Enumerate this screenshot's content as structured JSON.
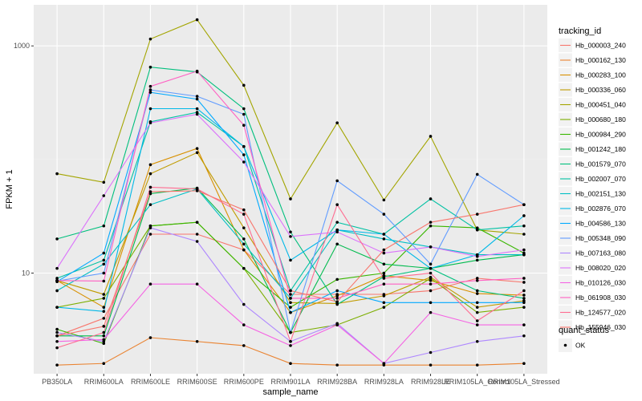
{
  "chart_data": {
    "type": "line",
    "xlabel": "sample_name",
    "ylabel": "FPKM + 1",
    "y_scale": "log10",
    "ylim": [
      1.3,
      2300
    ],
    "y_ticks": [
      10,
      1000
    ],
    "y_tick_labels": [
      "10",
      "1000"
    ],
    "grid": true,
    "legend_position": "right",
    "legend_title": "tracking_id",
    "shape_legend_title": "quant_status",
    "shape_legend_label": "OK",
    "categories": [
      "PB350LA",
      "RRIM600LA",
      "RRIM600LE",
      "RRIM600SE",
      "RRIM600PE",
      "RRIM901LA",
      "RRIM928BA",
      "RRIM928LA",
      "RRIM928LE",
      "RRIM105LA_Control",
      "RRIM105LA_Stressed"
    ],
    "series": [
      {
        "name": "Hb_000003_240",
        "color": "#F8766D",
        "values": [
          2.8,
          4.0,
          22,
          22,
          16,
          6.5,
          6.5,
          6.5,
          7.0,
          9.0,
          8.3
        ]
      },
      {
        "name": "Hb_000162_130",
        "color": "#EA8331",
        "values": [
          1.55,
          1.6,
          2.7,
          2.5,
          2.3,
          1.6,
          1.55,
          1.55,
          1.55,
          1.55,
          1.6
        ]
      },
      {
        "name": "Hb_000283_100",
        "color": "#D89000",
        "values": [
          8.6,
          5.0,
          90,
          125,
          16,
          4.5,
          6.3,
          9.5,
          8.6,
          6.6,
          6.4
        ]
      },
      {
        "name": "Hb_000336_060",
        "color": "#C09B00",
        "values": [
          8.6,
          6.5,
          75,
          115,
          25,
          5.5,
          5.4,
          6.3,
          9.2,
          5.0,
          5.7
        ]
      },
      {
        "name": "Hb_000451_040",
        "color": "#A3A500",
        "values": [
          75,
          63,
          1150,
          1700,
          450,
          45,
          210,
          44,
          160,
          24,
          22
        ]
      },
      {
        "name": "Hb_000680_180",
        "color": "#7CAE00",
        "values": [
          5.0,
          6.0,
          26,
          28,
          11,
          3.0,
          3.5,
          5.0,
          9.0,
          4.5,
          5.0
        ]
      },
      {
        "name": "Hb_000984_290",
        "color": "#39B600",
        "values": [
          3.2,
          2.4,
          26,
          28,
          11,
          5.0,
          8.8,
          10,
          26,
          25,
          15
        ]
      },
      {
        "name": "Hb_001242_180",
        "color": "#00BB4E",
        "values": [
          2.8,
          2.8,
          50,
          56,
          20,
          3.0,
          18,
          12,
          11,
          13,
          14.5
        ]
      },
      {
        "name": "Hb_001579_070",
        "color": "#00BF7D",
        "values": [
          20,
          26,
          650,
          590,
          280,
          23,
          5.3,
          9.3,
          11,
          7.0,
          6.0
        ]
      },
      {
        "name": "Hb_002007_070",
        "color": "#00C1A3",
        "values": [
          9.0,
          13,
          215,
          260,
          130,
          7.0,
          28,
          22,
          45,
          24,
          26
        ]
      },
      {
        "name": "Hb_002151_130",
        "color": "#00BFC4",
        "values": [
          7.0,
          12,
          40,
          55,
          18,
          6.0,
          24,
          20,
          17,
          14.5,
          14.5
        ]
      },
      {
        "name": "Hb_002876_070",
        "color": "#00B8E7",
        "values": [
          5.0,
          4.6,
          280,
          280,
          130,
          13,
          24,
          22,
          11,
          14.5,
          32
        ]
      },
      {
        "name": "Hb_004586_130",
        "color": "#00A9FF",
        "values": [
          8.4,
          15,
          390,
          340,
          110,
          4.5,
          7.0,
          5.5,
          5.5,
          5.5,
          5.5
        ]
      },
      {
        "name": "Hb_005348_090",
        "color": "#619CFF",
        "values": [
          8.5,
          10,
          410,
          360,
          250,
          3.0,
          65,
          33,
          12,
          74,
          40
        ]
      },
      {
        "name": "Hb_007163_080",
        "color": "#AE87FF",
        "values": [
          3.0,
          2.5,
          25,
          19,
          5.3,
          2.5,
          3.6,
          1.6,
          2.0,
          2.5,
          2.8
        ]
      },
      {
        "name": "Hb_008020_020",
        "color": "#DB72FB",
        "values": [
          11,
          48,
          210,
          250,
          95,
          21,
          23,
          15,
          17,
          14,
          16
        ]
      },
      {
        "name": "Hb_010126_030",
        "color": "#F564E3",
        "values": [
          2.5,
          2.6,
          8,
          8,
          3.5,
          2.3,
          3.5,
          1.6,
          4.5,
          3.5,
          3.5
        ]
      },
      {
        "name": "Hb_061908_030",
        "color": "#FF61C3",
        "values": [
          8.6,
          8.5,
          440,
          600,
          200,
          6.0,
          6.0,
          8.0,
          8.0,
          8.6,
          9.0
        ]
      },
      {
        "name": "Hb_124577_020",
        "color": "#FF6C91",
        "values": [
          2.2,
          3.0,
          57,
          55,
          33,
          2.5,
          40,
          9.0,
          10,
          3.8,
          7.0
        ]
      },
      {
        "name": "Hb_155946_030",
        "color": "#F8766D",
        "values": [
          2.8,
          3.4,
          52,
          53,
          36,
          7.0,
          5.6,
          16,
          28,
          33,
          40
        ]
      }
    ]
  }
}
